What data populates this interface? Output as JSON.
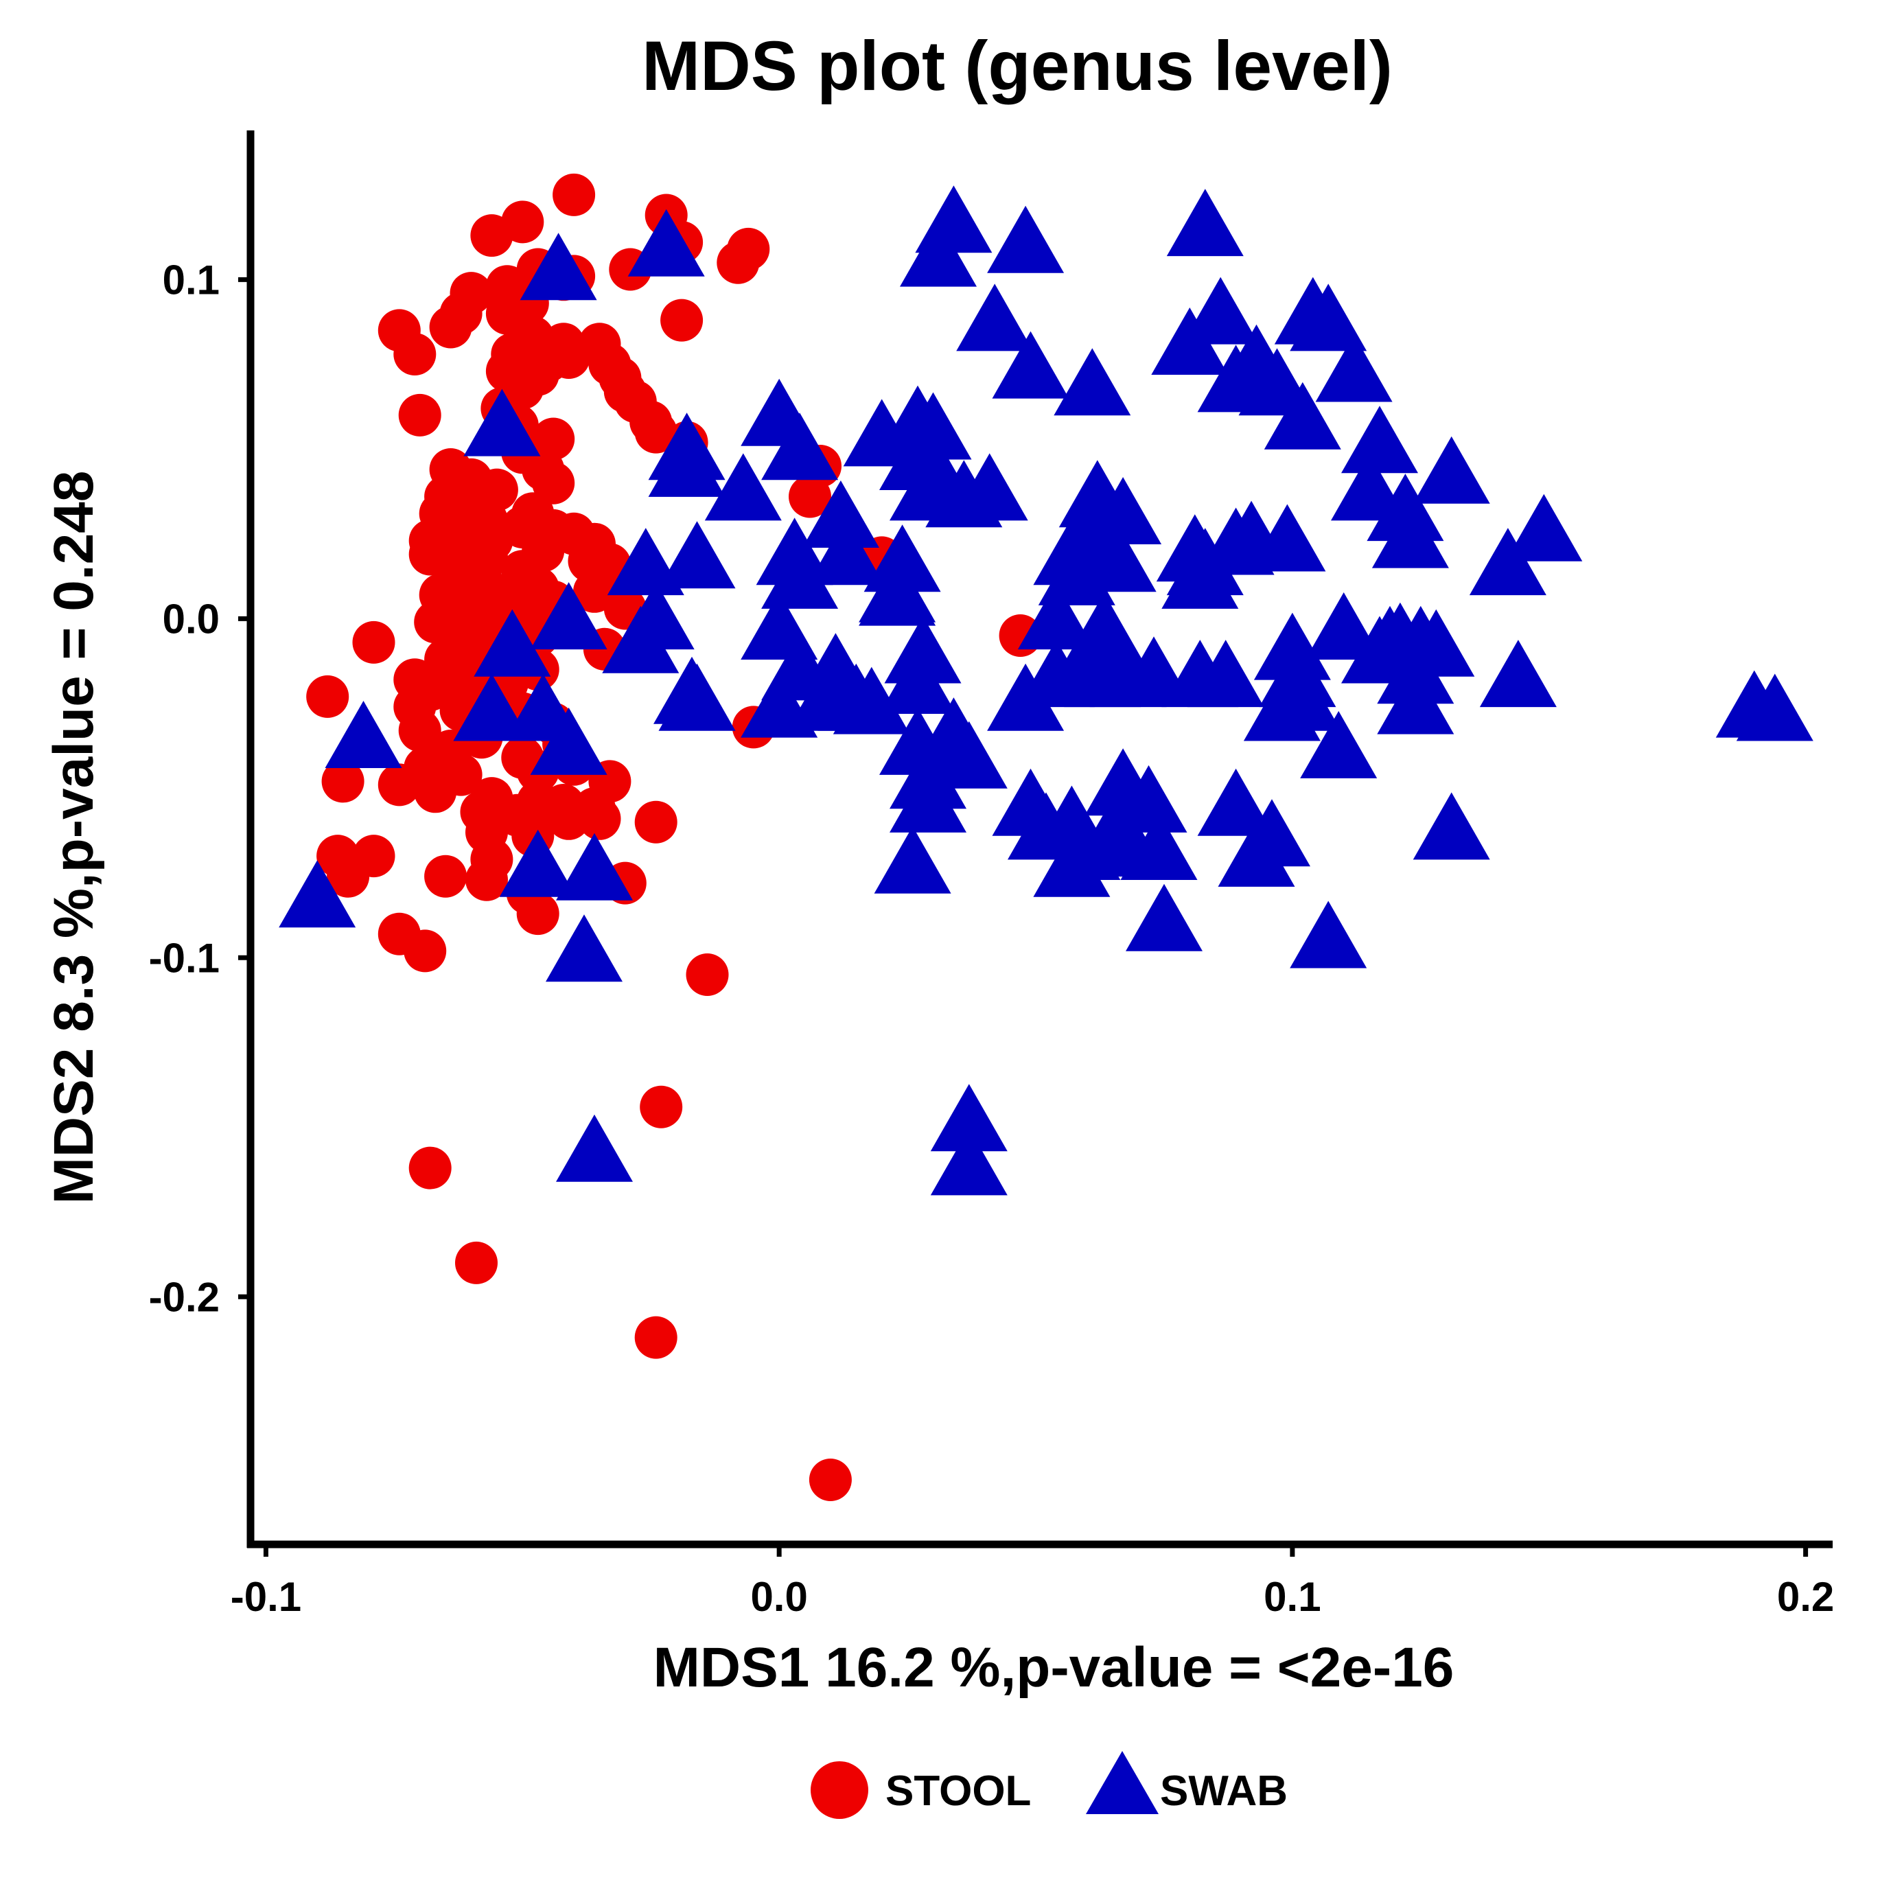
{
  "chart_data": {
    "type": "scatter",
    "title": "MDS plot (genus level)",
    "xlabel": "MDS1   16.2 %,p-value =  <2e-16",
    "ylabel": "MDS2   8.3 %,p-value =  0.248",
    "xlim": [
      -0.103,
      0.205
    ],
    "ylim": [
      -0.271,
      0.144
    ],
    "xticks": [
      -0.1,
      0.0,
      0.1,
      0.2
    ],
    "xtick_labels": [
      "-0.1",
      "0.0",
      "0.1",
      "0.2"
    ],
    "yticks": [
      -0.2,
      -0.1,
      0.0,
      0.1
    ],
    "ytick_labels": [
      "-0.2",
      "-0.1",
      "0.0",
      "0.1"
    ],
    "grid": false,
    "legend": "bottom",
    "series": [
      {
        "name": "STOOL",
        "marker": "circle",
        "color": "#ee0000",
        "points": [
          [
            -0.04,
            0.125
          ],
          [
            -0.022,
            0.119
          ],
          [
            -0.05,
            0.117
          ],
          [
            -0.056,
            0.113
          ],
          [
            -0.019,
            0.111
          ],
          [
            -0.006,
            0.109
          ],
          [
            -0.008,
            0.105
          ],
          [
            -0.029,
            0.103
          ],
          [
            -0.047,
            0.103
          ],
          [
            -0.04,
            0.101
          ],
          [
            -0.042,
            0.1
          ],
          [
            -0.053,
            0.098
          ],
          [
            -0.06,
            0.096
          ],
          [
            -0.049,
            0.093
          ],
          [
            -0.062,
            0.09
          ],
          [
            -0.053,
            0.09
          ],
          [
            -0.019,
            0.088
          ],
          [
            -0.074,
            0.085
          ],
          [
            -0.064,
            0.086
          ],
          [
            -0.048,
            0.083
          ],
          [
            -0.042,
            0.081
          ],
          [
            -0.035,
            0.081
          ],
          [
            -0.071,
            0.078
          ],
          [
            -0.052,
            0.078
          ],
          [
            -0.045,
            0.076
          ],
          [
            -0.041,
            0.077
          ],
          [
            -0.033,
            0.075
          ],
          [
            -0.053,
            0.073
          ],
          [
            -0.047,
            0.072
          ],
          [
            -0.031,
            0.071
          ],
          [
            -0.05,
            0.068
          ],
          [
            -0.03,
            0.067
          ],
          [
            -0.028,
            0.064
          ],
          [
            -0.054,
            0.062
          ],
          [
            -0.07,
            0.06
          ],
          [
            -0.025,
            0.058
          ],
          [
            -0.051,
            0.057
          ],
          [
            -0.024,
            0.055
          ],
          [
            -0.044,
            0.053
          ],
          [
            -0.018,
            0.052
          ],
          [
            -0.05,
            0.049
          ],
          [
            0.008,
            0.045
          ],
          [
            -0.064,
            0.044
          ],
          [
            -0.046,
            0.044
          ],
          [
            -0.06,
            0.041
          ],
          [
            -0.044,
            0.04
          ],
          [
            -0.055,
            0.038
          ],
          [
            -0.065,
            0.036
          ],
          [
            0.006,
            0.036
          ],
          [
            -0.061,
            0.033
          ],
          [
            -0.066,
            0.031
          ],
          [
            -0.048,
            0.031
          ],
          [
            -0.057,
            0.029
          ],
          [
            -0.064,
            0.027
          ],
          [
            -0.05,
            0.027
          ],
          [
            -0.044,
            0.026
          ],
          [
            -0.04,
            0.025
          ],
          [
            -0.068,
            0.023
          ],
          [
            -0.056,
            0.023
          ],
          [
            -0.036,
            0.022
          ],
          [
            -0.062,
            0.02
          ],
          [
            -0.046,
            0.02
          ],
          [
            -0.068,
            0.019
          ],
          [
            -0.057,
            0.018
          ],
          [
            0.02,
            0.018
          ],
          [
            -0.037,
            0.017
          ],
          [
            -0.033,
            0.016
          ],
          [
            -0.063,
            0.015
          ],
          [
            -0.05,
            0.014
          ],
          [
            -0.058,
            0.011
          ],
          [
            -0.047,
            0.009
          ],
          [
            -0.036,
            0.008
          ],
          [
            -0.066,
            0.007
          ],
          [
            -0.054,
            0.006
          ],
          [
            -0.044,
            0.005
          ],
          [
            -0.063,
            0.004
          ],
          [
            -0.05,
            0.003
          ],
          [
            -0.03,
            0.003
          ],
          [
            -0.059,
            0.001
          ],
          [
            -0.044,
            0.0
          ],
          [
            -0.067,
            -0.001
          ],
          [
            -0.053,
            -0.003
          ],
          [
            -0.063,
            -0.004
          ],
          [
            -0.047,
            -0.005
          ],
          [
            0.047,
            -0.005
          ],
          [
            -0.059,
            -0.008
          ],
          [
            -0.034,
            -0.009
          ],
          [
            -0.051,
            -0.01
          ],
          [
            -0.079,
            -0.007
          ],
          [
            -0.065,
            -0.012
          ],
          [
            -0.057,
            -0.014
          ],
          [
            -0.047,
            -0.015
          ],
          [
            -0.071,
            -0.018
          ],
          [
            -0.061,
            -0.019
          ],
          [
            -0.053,
            -0.019
          ],
          [
            -0.068,
            -0.021
          ],
          [
            -0.088,
            -0.023
          ],
          [
            -0.056,
            -0.024
          ],
          [
            -0.071,
            -0.026
          ],
          [
            -0.062,
            -0.027
          ],
          [
            -0.05,
            -0.028
          ],
          [
            -0.044,
            -0.031
          ],
          [
            -0.005,
            -0.032
          ],
          [
            -0.07,
            -0.033
          ],
          [
            -0.058,
            -0.035
          ],
          [
            -0.042,
            -0.037
          ],
          [
            -0.064,
            -0.039
          ],
          [
            -0.05,
            -0.041
          ],
          [
            -0.04,
            -0.043
          ],
          [
            -0.069,
            -0.044
          ],
          [
            -0.047,
            -0.045
          ],
          [
            -0.062,
            -0.046
          ],
          [
            -0.033,
            -0.048
          ],
          [
            -0.085,
            -0.048
          ],
          [
            -0.074,
            -0.049
          ],
          [
            -0.067,
            -0.051
          ],
          [
            -0.056,
            -0.053
          ],
          [
            -0.047,
            -0.054
          ],
          [
            -0.042,
            -0.055
          ],
          [
            -0.036,
            -0.056
          ],
          [
            -0.058,
            -0.057
          ],
          [
            -0.051,
            -0.058
          ],
          [
            -0.041,
            -0.059
          ],
          [
            -0.035,
            -0.059
          ],
          [
            -0.024,
            -0.06
          ],
          [
            -0.057,
            -0.063
          ],
          [
            -0.048,
            -0.064
          ],
          [
            -0.079,
            -0.07
          ],
          [
            -0.086,
            -0.07
          ],
          [
            -0.056,
            -0.071
          ],
          [
            -0.084,
            -0.076
          ],
          [
            -0.065,
            -0.076
          ],
          [
            -0.057,
            -0.077
          ],
          [
            -0.03,
            -0.078
          ],
          [
            -0.049,
            -0.081
          ],
          [
            -0.047,
            -0.087
          ],
          [
            -0.074,
            -0.093
          ],
          [
            -0.069,
            -0.098
          ],
          [
            -0.014,
            -0.105
          ],
          [
            -0.023,
            -0.144
          ],
          [
            -0.068,
            -0.162
          ],
          [
            -0.059,
            -0.19
          ],
          [
            -0.024,
            -0.212
          ],
          [
            0.01,
            -0.254
          ]
        ]
      },
      {
        "name": "SWAB",
        "marker": "triangle",
        "color": "#0000c0",
        "points": [
          [
            0.034,
            0.114
          ],
          [
            0.083,
            0.113
          ],
          [
            0.048,
            0.108
          ],
          [
            -0.022,
            0.107
          ],
          [
            0.031,
            0.104
          ],
          [
            -0.043,
            0.1
          ],
          [
            0.086,
            0.087
          ],
          [
            0.104,
            0.087
          ],
          [
            0.042,
            0.085
          ],
          [
            0.107,
            0.085
          ],
          [
            0.08,
            0.078
          ],
          [
            0.093,
            0.073
          ],
          [
            0.112,
            0.07
          ],
          [
            0.049,
            0.071
          ],
          [
            0.089,
            0.067
          ],
          [
            0.061,
            0.066
          ],
          [
            0.097,
            0.066
          ],
          [
            0.0,
            0.057
          ],
          [
            0.027,
            0.055
          ],
          [
            0.03,
            0.053
          ],
          [
            -0.054,
            0.054
          ],
          [
            0.02,
            0.051
          ],
          [
            0.102,
            0.056
          ],
          [
            0.117,
            0.049
          ],
          [
            0.004,
            0.047
          ],
          [
            -0.018,
            0.042
          ],
          [
            0.131,
            0.04
          ],
          [
            0.032,
            0.036
          ],
          [
            0.029,
            0.035
          ],
          [
            0.041,
            0.035
          ],
          [
            -0.007,
            0.035
          ],
          [
            0.067,
            0.028
          ],
          [
            0.062,
            0.033
          ],
          [
            0.122,
            0.029
          ],
          [
            0.012,
            0.027
          ],
          [
            0.062,
            0.028
          ],
          [
            0.149,
            0.023
          ],
          [
            0.123,
            0.021
          ],
          [
            0.089,
            0.019
          ],
          [
            0.092,
            0.021
          ],
          [
            0.099,
            0.02
          ],
          [
            0.06,
            0.02
          ],
          [
            0.081,
            0.017
          ],
          [
            0.057,
            0.016
          ],
          [
            0.003,
            0.016
          ],
          [
            0.013,
            0.016
          ],
          [
            -0.016,
            0.015
          ],
          [
            0.024,
            0.014
          ],
          [
            -0.026,
            0.013
          ],
          [
            0.142,
            0.013
          ],
          [
            0.082,
            0.009
          ],
          [
            0.058,
            0.01
          ],
          [
            0.066,
            0.014
          ],
          [
            0.004,
            0.009
          ],
          [
            0.023,
            0.004
          ],
          [
            -0.024,
            -0.003
          ],
          [
            -0.041,
            -0.003
          ],
          [
            0.023,
            0.005
          ],
          [
            0.054,
            -0.003
          ],
          [
            0.064,
            -0.008
          ],
          [
            0.11,
            -0.006
          ],
          [
            0.121,
            -0.009
          ],
          [
            0.119,
            -0.01
          ],
          [
            0.125,
            -0.01
          ],
          [
            0.117,
            -0.013
          ],
          [
            0.128,
            -0.011
          ],
          [
            0.063,
            -0.007
          ],
          [
            0.1,
            -0.012
          ],
          [
            0.0,
            -0.006
          ],
          [
            -0.027,
            -0.01
          ],
          [
            -0.052,
            -0.011
          ],
          [
            0.028,
            -0.013
          ],
          [
            0.066,
            -0.016
          ],
          [
            0.059,
            -0.019
          ],
          [
            0.064,
            -0.019
          ],
          [
            0.004,
            -0.018
          ],
          [
            0.011,
            -0.018
          ],
          [
            0.101,
            -0.02
          ],
          [
            0.054,
            -0.02
          ],
          [
            0.087,
            -0.02
          ],
          [
            0.068,
            -0.02
          ],
          [
            0.063,
            -0.02
          ],
          [
            0.073,
            -0.019
          ],
          [
            0.082,
            -0.02
          ],
          [
            0.124,
            -0.019
          ],
          [
            0.144,
            -0.02
          ],
          [
            0.027,
            -0.022
          ],
          [
            -0.017,
            -0.025
          ],
          [
            -0.016,
            -0.027
          ],
          [
            0.015,
            -0.027
          ],
          [
            0.048,
            -0.027
          ],
          [
            0.009,
            -0.027
          ],
          [
            0.018,
            -0.028
          ],
          [
            0.102,
            -0.027
          ],
          [
            0.124,
            -0.028
          ],
          [
            0.098,
            -0.03
          ],
          [
            -0.056,
            -0.03
          ],
          [
            -0.046,
            -0.03
          ],
          [
            0.19,
            -0.029
          ],
          [
            -0.081,
            -0.038
          ],
          [
            -0.041,
            -0.04
          ],
          [
            0.027,
            -0.04
          ],
          [
            0.0,
            -0.029
          ],
          [
            0.034,
            -0.037
          ],
          [
            0.194,
            -0.03
          ],
          [
            0.109,
            -0.041
          ],
          [
            0.037,
            -0.044
          ],
          [
            0.029,
            -0.05
          ],
          [
            0.067,
            -0.052
          ],
          [
            0.089,
            -0.058
          ],
          [
            0.049,
            -0.058
          ],
          [
            0.072,
            -0.057
          ],
          [
            0.029,
            -0.057
          ],
          [
            0.057,
            -0.063
          ],
          [
            0.066,
            -0.064
          ],
          [
            0.052,
            -0.065
          ],
          [
            0.131,
            -0.065
          ],
          [
            0.096,
            -0.067
          ],
          [
            0.067,
            -0.07
          ],
          [
            0.074,
            -0.071
          ],
          [
            0.059,
            -0.071
          ],
          [
            0.093,
            -0.073
          ],
          [
            -0.047,
            -0.076
          ],
          [
            -0.036,
            -0.077
          ],
          [
            0.026,
            -0.075
          ],
          [
            0.057,
            -0.076
          ],
          [
            -0.09,
            -0.085
          ],
          [
            0.075,
            -0.092
          ],
          [
            0.107,
            -0.097
          ],
          [
            -0.038,
            -0.101
          ],
          [
            0.037,
            -0.151
          ],
          [
            -0.036,
            -0.16
          ],
          [
            0.037,
            -0.164
          ],
          [
            -0.018,
            0.047
          ],
          [
            0.027,
            0.044
          ],
          [
            0.036,
            0.033
          ],
          [
            0.083,
            0.013
          ],
          [
            0.115,
            0.035
          ]
        ]
      }
    ]
  },
  "legend": {
    "items": [
      {
        "label": "STOOL",
        "marker": "circle",
        "color": "#ee0000"
      },
      {
        "label": "SWAB",
        "marker": "triangle",
        "color": "#0000c0"
      }
    ]
  }
}
